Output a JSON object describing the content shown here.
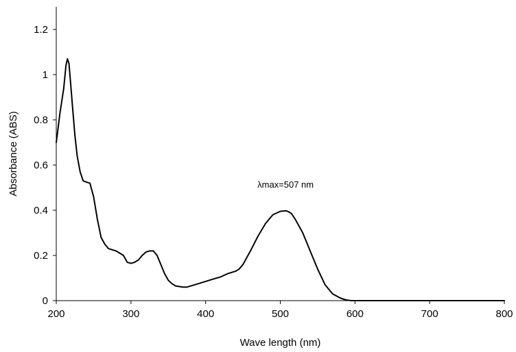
{
  "chart_data": {
    "type": "line",
    "title": "",
    "xlabel": "Wave length (nm)",
    "ylabel": "Absorbance (ABS)",
    "xlim": [
      200,
      800
    ],
    "ylim": [
      0,
      1.3
    ],
    "x_ticks": [
      200,
      300,
      400,
      500,
      600,
      700,
      800
    ],
    "x_tick_labels": [
      "200",
      "300",
      "400",
      "500",
      "600",
      "700",
      "800"
    ],
    "y_ticks": [
      0,
      0.2,
      0.4,
      0.6,
      0.8,
      1,
      1.2
    ],
    "y_tick_labels": [
      "0",
      "0.2",
      "0.4",
      "0.6",
      "0.8",
      "1",
      "1.2"
    ],
    "grid": false,
    "legend": "none",
    "line_color": "#000000",
    "annotation": {
      "text": "λmax=507 nm",
      "x": 507,
      "y": 0.5
    },
    "series": [
      {
        "x": [
          200,
          205,
          210,
          213,
          215,
          217,
          219,
          222,
          225,
          228,
          232,
          236,
          240,
          245,
          250,
          255,
          260,
          265,
          270,
          280,
          290,
          295,
          300,
          305,
          310,
          315,
          320,
          325,
          330,
          335,
          340,
          345,
          350,
          355,
          360,
          370,
          375,
          380,
          390,
          400,
          410,
          420,
          430,
          440,
          445,
          450,
          460,
          470,
          480,
          490,
          500,
          505,
          507,
          510,
          515,
          520,
          530,
          540,
          550,
          560,
          570,
          580,
          585,
          590,
          595,
          600,
          650,
          700,
          750,
          800
        ],
        "y": [
          0.7,
          0.83,
          0.94,
          1.04,
          1.07,
          1.05,
          0.97,
          0.85,
          0.73,
          0.64,
          0.57,
          0.53,
          0.525,
          0.52,
          0.46,
          0.36,
          0.28,
          0.25,
          0.23,
          0.22,
          0.2,
          0.17,
          0.165,
          0.17,
          0.18,
          0.2,
          0.215,
          0.22,
          0.22,
          0.2,
          0.16,
          0.12,
          0.09,
          0.075,
          0.065,
          0.06,
          0.06,
          0.065,
          0.075,
          0.085,
          0.095,
          0.105,
          0.12,
          0.13,
          0.14,
          0.16,
          0.22,
          0.285,
          0.34,
          0.38,
          0.395,
          0.397,
          0.398,
          0.395,
          0.385,
          0.36,
          0.3,
          0.22,
          0.14,
          0.07,
          0.03,
          0.012,
          0.006,
          0.002,
          0.0,
          0.0,
          0.0,
          0.0,
          0.0,
          0.0
        ]
      }
    ]
  }
}
